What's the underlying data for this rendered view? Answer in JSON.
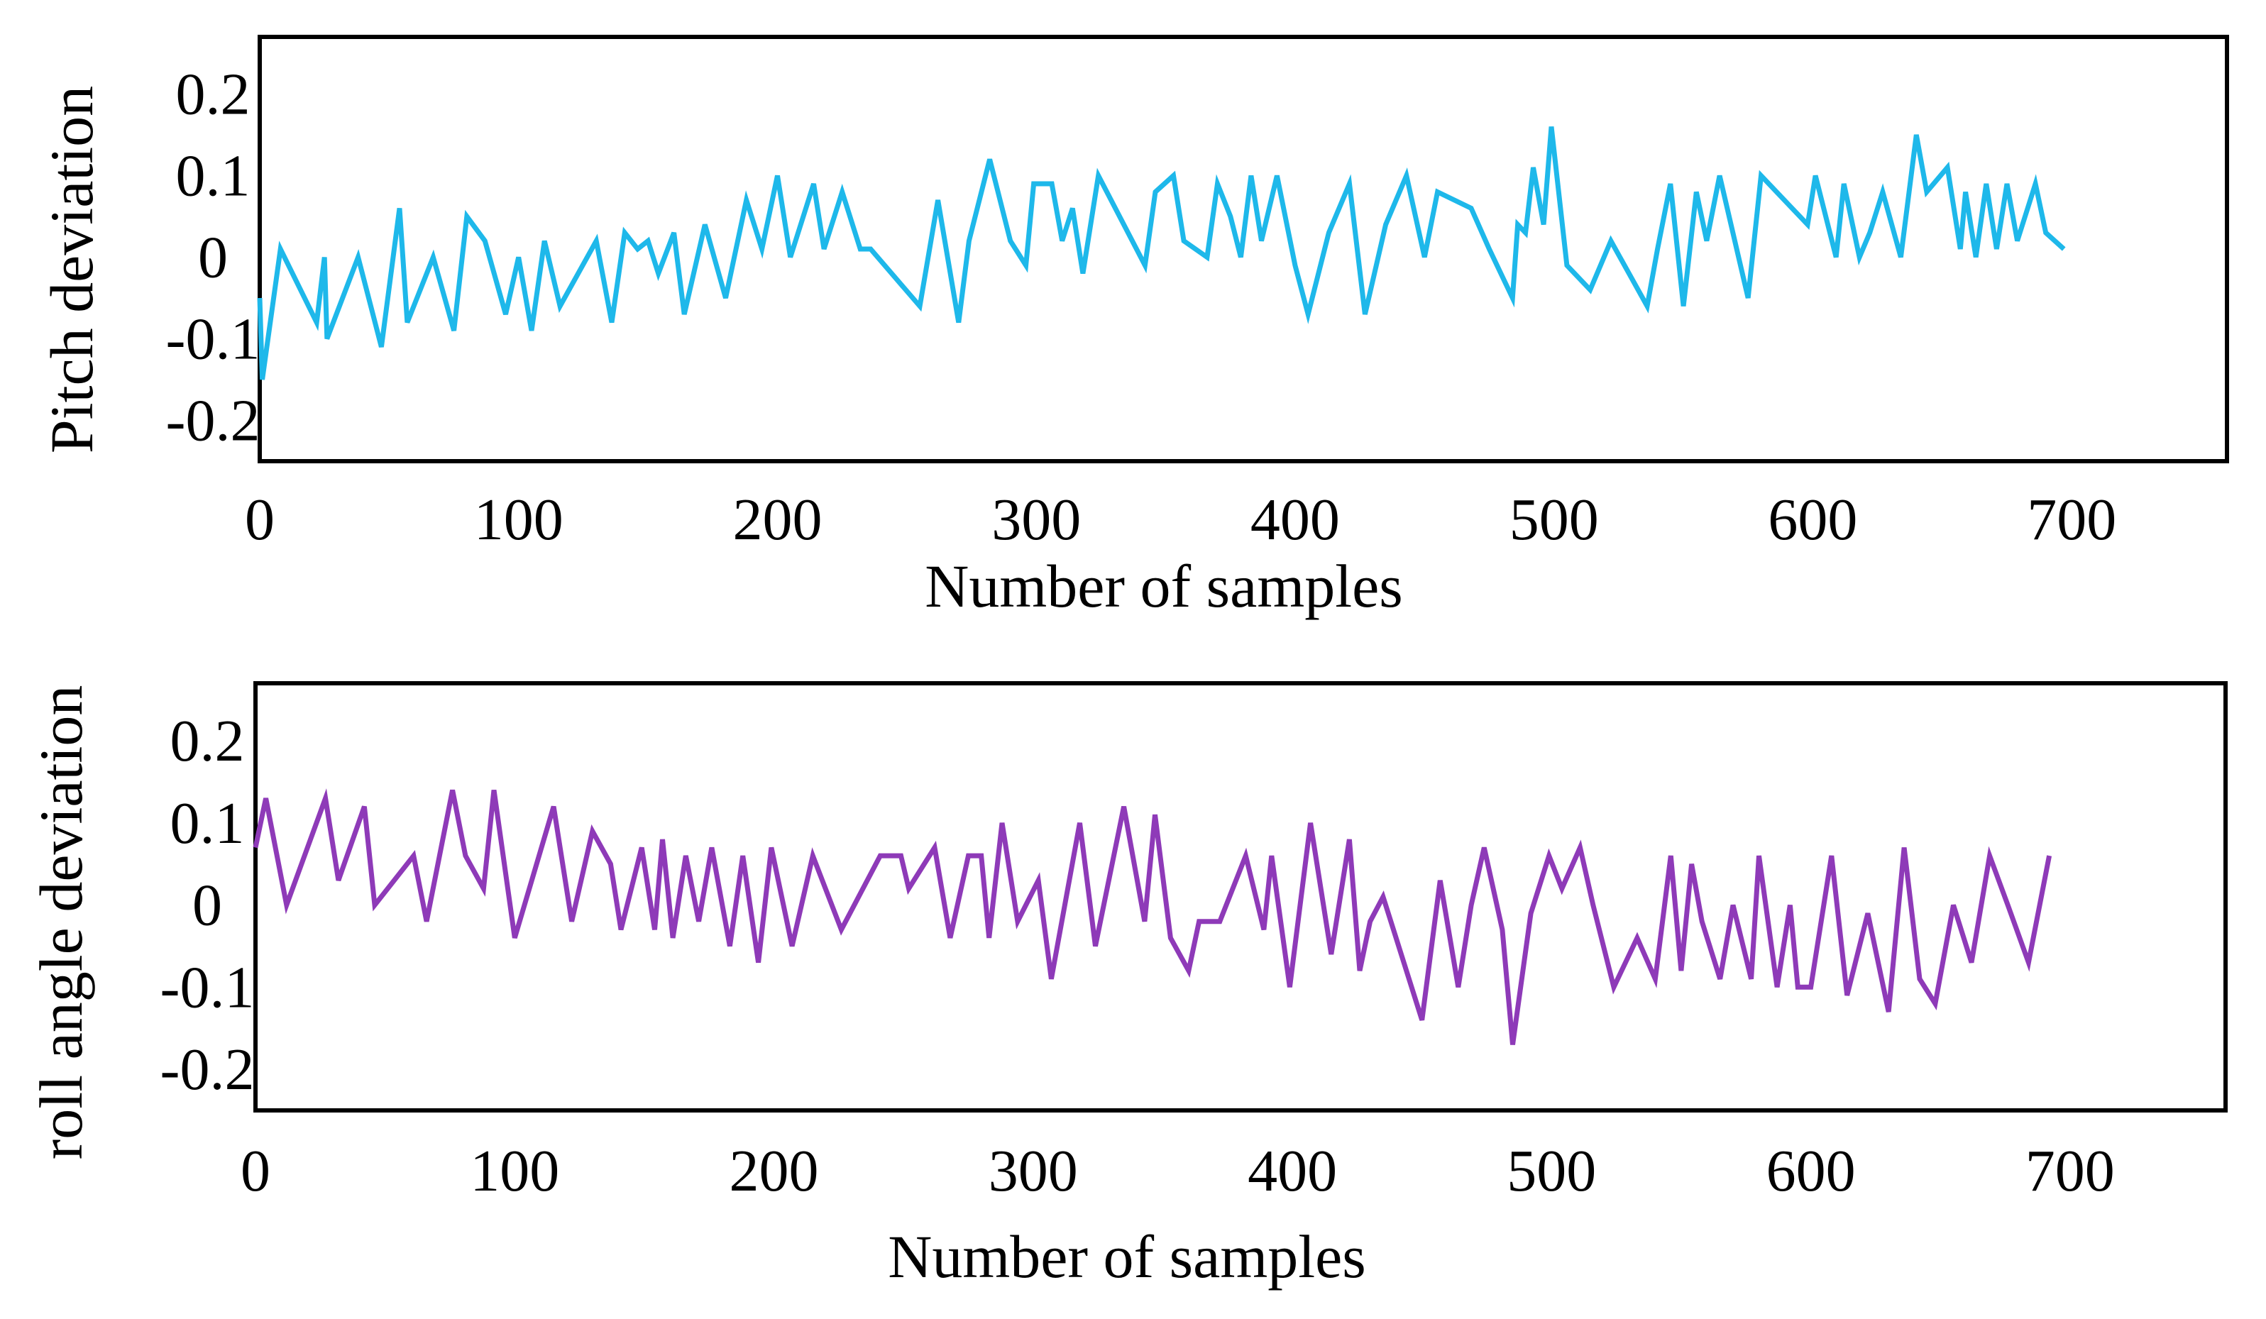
{
  "chart_data": [
    {
      "type": "line",
      "title": "",
      "xlabel": "Number of samples",
      "ylabel": "Pitch deviation",
      "xlim": [
        0,
        760
      ],
      "ylim": [
        -0.25,
        0.27
      ],
      "xticks": [
        0,
        100,
        200,
        300,
        400,
        500,
        600,
        700
      ],
      "xtick_labels": [
        "0",
        "100",
        "200",
        "300",
        "400",
        "500",
        "600",
        "700"
      ],
      "yticks": [
        0.2,
        0.1,
        0,
        -0.1,
        -0.2
      ],
      "ytick_labels": [
        "0.2",
        "0.1",
        "0",
        "-0.1",
        "-0.2"
      ],
      "grid": false,
      "series": [
        {
          "name": "Pitch deviation",
          "color": "#1EB8EA",
          "x": [
            0,
            1,
            8,
            22,
            25,
            26,
            38,
            47,
            54,
            57,
            67,
            75,
            80,
            87,
            95,
            100,
            105,
            110,
            116,
            130,
            136,
            141,
            146,
            150,
            154,
            160,
            164,
            172,
            180,
            188,
            194,
            200,
            205,
            214,
            218,
            225,
            232,
            236,
            255,
            262,
            270,
            274,
            282,
            290,
            296,
            299,
            306,
            310,
            314,
            318,
            324,
            342,
            346,
            353,
            357,
            366,
            370,
            375,
            379,
            383,
            387,
            393,
            400,
            405,
            413,
            421,
            427,
            435,
            443,
            450,
            455,
            468,
            475,
            484,
            486,
            489,
            492,
            496,
            499,
            505,
            514,
            522,
            536,
            540,
            545,
            550,
            555,
            559,
            564,
            575,
            580,
            592,
            598,
            601,
            609,
            612,
            618,
            622,
            627,
            634,
            640,
            644,
            652,
            657,
            659,
            663,
            667,
            671,
            675,
            679,
            686,
            690,
            697
          ],
          "values": [
            -0.05,
            -0.15,
            0.01,
            -0.08,
            0.0,
            -0.1,
            0.0,
            -0.11,
            0.06,
            -0.08,
            0.0,
            -0.09,
            0.05,
            0.02,
            -0.07,
            0.0,
            -0.09,
            0.02,
            -0.06,
            0.02,
            -0.08,
            0.03,
            0.01,
            0.02,
            -0.02,
            0.03,
            -0.07,
            0.04,
            -0.05,
            0.07,
            0.01,
            0.1,
            0.0,
            0.09,
            0.01,
            0.08,
            0.01,
            0.01,
            -0.06,
            0.07,
            -0.08,
            0.02,
            0.12,
            0.02,
            -0.01,
            0.09,
            0.09,
            0.02,
            0.06,
            -0.02,
            0.1,
            -0.01,
            0.08,
            0.1,
            0.02,
            0.0,
            0.09,
            0.05,
            0.0,
            0.1,
            0.02,
            0.1,
            -0.01,
            -0.07,
            0.03,
            0.09,
            -0.07,
            0.04,
            0.1,
            0.0,
            0.08,
            0.06,
            0.01,
            -0.05,
            0.04,
            0.03,
            0.11,
            0.04,
            0.16,
            -0.01,
            -0.04,
            0.02,
            -0.06,
            0.01,
            0.09,
            -0.06,
            0.08,
            0.02,
            0.1,
            -0.05,
            0.1,
            0.06,
            0.04,
            0.1,
            0.0,
            0.09,
            0.0,
            0.03,
            0.08,
            0.0,
            0.15,
            0.08,
            0.11,
            0.01,
            0.08,
            0.0,
            0.09,
            0.01,
            0.09,
            0.02,
            0.09,
            0.03,
            0.01
          ]
        }
      ]
    },
    {
      "type": "line",
      "title": "",
      "xlabel": "Number of samples",
      "ylabel": "roll angle deviation",
      "xlim": [
        0,
        760
      ],
      "ylim": [
        -0.25,
        0.27
      ],
      "xticks": [
        0,
        100,
        200,
        300,
        400,
        500,
        600,
        700
      ],
      "xtick_labels": [
        "0",
        "100",
        "200",
        "300",
        "400",
        "500",
        "600",
        "700"
      ],
      "yticks": [
        0.2,
        0.1,
        0,
        -0.1,
        -0.2
      ],
      "ytick_labels": [
        "0.2",
        "0.1",
        "0",
        "-0.1",
        "-0.2"
      ],
      "grid": false,
      "series": [
        {
          "name": "roll angle deviation",
          "color": "#8E3AB8",
          "x": [
            0,
            4,
            12,
            27,
            32,
            42,
            46,
            61,
            66,
            76,
            81,
            88,
            92,
            100,
            115,
            122,
            130,
            137,
            141,
            149,
            154,
            157,
            161,
            166,
            171,
            176,
            183,
            188,
            194,
            199,
            207,
            215,
            226,
            241,
            249,
            252,
            262,
            268,
            275,
            280,
            283,
            288,
            294,
            302,
            307,
            318,
            324,
            335,
            343,
            347,
            353,
            360,
            364,
            372,
            382,
            389,
            392,
            399,
            407,
            415,
            422,
            426,
            430,
            435,
            440,
            450,
            457,
            464,
            469,
            474,
            481,
            485,
            492,
            499,
            504,
            511,
            516,
            524,
            533,
            540,
            546,
            550,
            554,
            558,
            565,
            570,
            577,
            580,
            587,
            592,
            595,
            600,
            608,
            614,
            622,
            630,
            636,
            642,
            648,
            655,
            662,
            669,
            676,
            684,
            692
          ],
          "values": [
            0.07,
            0.13,
            0.0,
            0.13,
            0.03,
            0.12,
            0.0,
            0.06,
            -0.02,
            0.14,
            0.06,
            0.02,
            0.14,
            -0.04,
            0.12,
            -0.02,
            0.09,
            0.05,
            -0.03,
            0.07,
            -0.03,
            0.08,
            -0.04,
            0.06,
            -0.02,
            0.07,
            -0.05,
            0.06,
            -0.07,
            0.07,
            -0.05,
            0.06,
            -0.03,
            0.06,
            0.06,
            0.02,
            0.07,
            -0.04,
            0.06,
            0.06,
            -0.04,
            0.1,
            -0.02,
            0.03,
            -0.09,
            0.1,
            -0.05,
            0.12,
            -0.02,
            0.11,
            -0.04,
            -0.08,
            -0.02,
            -0.02,
            0.06,
            -0.03,
            0.06,
            -0.1,
            0.1,
            -0.06,
            0.08,
            -0.08,
            -0.02,
            0.01,
            -0.04,
            -0.14,
            0.03,
            -0.1,
            0.0,
            0.07,
            -0.03,
            -0.17,
            -0.01,
            0.06,
            0.02,
            0.07,
            0.0,
            -0.1,
            -0.04,
            -0.09,
            0.06,
            -0.08,
            0.05,
            -0.02,
            -0.09,
            0.0,
            -0.09,
            0.06,
            -0.1,
            0.0,
            -0.1,
            -0.1,
            0.06,
            -0.11,
            -0.01,
            -0.13,
            0.07,
            -0.09,
            -0.12,
            0.0,
            -0.07,
            0.06,
            0.0,
            -0.07,
            0.06
          ]
        }
      ]
    }
  ]
}
